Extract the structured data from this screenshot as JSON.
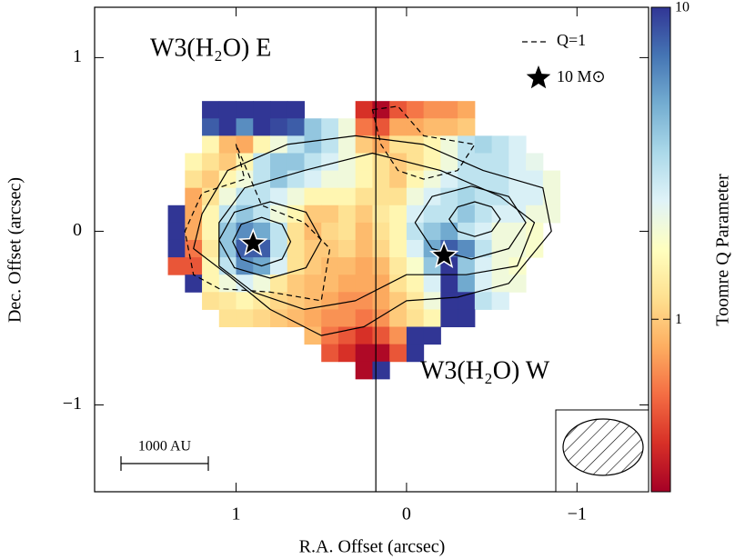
{
  "chart_data": {
    "type": "heatmap",
    "xlabel": "R.A. Offset (arcsec)",
    "ylabel": "Dec. Offset (arcsec)",
    "xlim": [
      1.83,
      -1.42
    ],
    "ylim": [
      -1.5,
      1.29
    ],
    "xticks": [
      1,
      0,
      {
        "value": -1,
        "label": "−1"
      }
    ],
    "yticks": [
      {
        "value": -1,
        "label": "−1"
      },
      0,
      1
    ],
    "x": [
      1.35,
      1.25,
      1.15,
      1.05,
      0.95,
      0.85,
      0.75,
      0.65,
      0.55,
      0.45,
      0.35,
      0.25,
      0.15,
      0.05,
      -0.05,
      -0.15,
      -0.25,
      -0.35,
      -0.45,
      -0.55,
      -0.65,
      -0.75,
      -0.85
    ],
    "y": [
      0.7,
      0.6,
      0.5,
      0.4,
      0.3,
      0.2,
      0.1,
      0,
      -0.1,
      -0.2,
      -0.3,
      -0.4,
      -0.5,
      -0.6,
      -0.7,
      -0.8
    ],
    "z": [
      [
        null,
        null,
        10,
        10,
        10,
        10,
        10,
        10,
        null,
        null,
        null,
        0.4,
        0.3,
        0.5,
        0.6,
        0.7,
        0.7,
        0.8,
        null,
        null,
        null,
        null,
        null
      ],
      [
        null,
        null,
        8,
        10,
        6,
        10,
        9,
        8,
        4,
        3,
        2,
        0.6,
        0.5,
        0.8,
        0.8,
        0.9,
        0.9,
        1.0,
        null,
        null,
        null,
        null,
        null
      ],
      [
        null,
        null,
        1.5,
        0.9,
        0.8,
        1.5,
        2,
        3,
        4,
        3,
        2,
        1,
        0.8,
        1.2,
        1.2,
        1.5,
        2,
        3,
        3.5,
        3,
        2.5,
        null,
        null
      ],
      [
        null,
        1.5,
        1.2,
        1,
        1.5,
        3,
        4,
        4,
        3,
        2.5,
        2,
        1.5,
        1.2,
        1,
        1.2,
        1.5,
        2,
        3,
        3,
        3,
        2.5,
        2.2,
        null
      ],
      [
        null,
        1.2,
        1,
        1.5,
        2,
        3,
        4,
        3,
        2.5,
        2,
        2,
        1.5,
        1.2,
        1,
        1.5,
        2,
        2.5,
        3,
        3,
        3,
        2.5,
        2.5,
        2
      ],
      [
        null,
        0.8,
        1.2,
        2,
        3,
        3,
        2.5,
        2,
        1.5,
        1.5,
        1.5,
        1.2,
        1.2,
        1.2,
        2,
        2.5,
        3,
        3.5,
        3,
        3,
        2.5,
        2.5,
        2
      ],
      [
        10,
        0.8,
        1.5,
        3,
        4,
        3,
        2,
        1.5,
        1,
        1,
        1.2,
        1,
        1.3,
        1.5,
        2.5,
        3,
        3,
        4,
        3,
        2.5,
        2.5,
        2,
        2
      ],
      [
        10,
        0.8,
        1.5,
        4,
        6,
        5,
        3,
        1.2,
        0.9,
        1.1,
        1.2,
        0.9,
        1.2,
        1.5,
        3,
        4,
        5,
        3,
        2.5,
        2,
        2,
        1.8,
        null
      ],
      [
        10,
        0.6,
        1.3,
        4,
        8,
        8,
        3,
        1.2,
        1,
        1,
        1.1,
        0.9,
        1.1,
        1.5,
        2.5,
        5,
        8,
        6,
        3,
        2,
        2,
        1.8,
        null
      ],
      [
        0.5,
        0.5,
        1.5,
        3,
        6,
        5,
        2.5,
        1.2,
        1,
        0.9,
        0.9,
        0.8,
        0.9,
        1.3,
        1.8,
        4,
        10,
        4,
        2.5,
        2,
        1.8,
        null,
        null
      ],
      [
        null,
        10,
        1.5,
        2,
        2.5,
        2,
        1.3,
        1,
        0.9,
        0.9,
        0.8,
        0.8,
        0.8,
        1.2,
        1.5,
        2.5,
        10,
        5,
        2.5,
        2,
        2,
        null,
        null
      ],
      [
        null,
        null,
        1.2,
        1.3,
        1.5,
        1.3,
        1.1,
        1,
        0.9,
        0.8,
        0.7,
        0.7,
        0.8,
        1,
        1.3,
        2,
        10,
        10,
        3,
        2.5,
        null,
        null,
        null
      ],
      [
        null,
        null,
        null,
        1.2,
        1.2,
        1.1,
        1,
        0.9,
        0.8,
        0.7,
        0.7,
        0.6,
        0.7,
        1,
        1.2,
        1.5,
        10,
        10,
        null,
        null,
        null,
        null,
        null
      ],
      [
        null,
        null,
        null,
        null,
        null,
        null,
        null,
        null,
        0.9,
        0.6,
        0.5,
        0.4,
        0.5,
        0.7,
        10,
        10,
        null,
        null,
        null,
        null,
        null,
        null,
        null
      ],
      [
        null,
        null,
        null,
        null,
        null,
        null,
        null,
        null,
        null,
        0.5,
        0.4,
        0.3,
        0.3,
        0.5,
        10,
        null,
        null,
        null,
        null,
        null,
        null,
        null,
        null
      ],
      [
        null,
        null,
        null,
        null,
        null,
        null,
        null,
        null,
        null,
        null,
        null,
        0.3,
        10,
        null,
        null,
        null,
        null,
        null,
        null,
        null,
        null,
        null,
        null
      ]
    ],
    "colorbar": {
      "label": "Toomre Q Parameter",
      "log": true,
      "lim": [
        0.28,
        10
      ],
      "ticks": [
        1,
        10
      ],
      "colors": [
        "#a50026",
        "#d73027",
        "#f46d43",
        "#fdae61",
        "#fee090",
        "#ffffbf",
        "#e0f3f8",
        "#abd9e9",
        "#74add1",
        "#4575b4",
        "#313695"
      ]
    },
    "contours": [
      {
        "x": [
          1.2,
          1.05,
          0.7,
          0.3,
          -0.1,
          -0.45,
          -0.8,
          -0.85,
          -0.6,
          -0.3,
          0.0,
          0.25,
          0.5,
          0.8,
          1.05,
          1.25
        ],
        "y": [
          0.1,
          0.35,
          0.5,
          0.55,
          0.5,
          0.35,
          0.25,
          0.0,
          -0.3,
          -0.38,
          -0.4,
          -0.55,
          -0.6,
          -0.45,
          -0.25,
          -0.1
        ]
      },
      {
        "x": [
          1.1,
          0.95,
          0.6,
          0.2,
          -0.2,
          -0.55,
          -0.75,
          -0.65,
          -0.35,
          0,
          0.3,
          0.6,
          0.9,
          1.1
        ],
        "y": [
          0.05,
          0.25,
          0.35,
          0.45,
          0.35,
          0.2,
          0.05,
          -0.2,
          -0.25,
          -0.25,
          -0.4,
          -0.45,
          -0.35,
          -0.2
        ]
      },
      {
        "x": [
          1.1,
          1.01,
          0.8,
          0.59,
          0.5,
          0.59,
          0.8,
          1.01
        ],
        "y": [
          -0.05,
          0.11,
          0.17,
          0.11,
          -0.05,
          -0.21,
          -0.27,
          -0.21
        ]
      },
      {
        "x": [
          1.02,
          0.97,
          0.85,
          0.73,
          0.68,
          0.73,
          0.85,
          0.97
        ],
        "y": [
          -0.06,
          0.04,
          0.08,
          0.04,
          -0.06,
          -0.16,
          -0.2,
          -0.16
        ]
      },
      {
        "x": [
          -0.05,
          -0.15,
          -0.38,
          -0.6,
          -0.7,
          -0.6,
          -0.38,
          -0.15
        ],
        "y": [
          0.05,
          0.2,
          0.26,
          0.2,
          0.05,
          -0.1,
          -0.16,
          -0.1
        ]
      },
      {
        "x": [
          -0.25,
          -0.3,
          -0.4,
          -0.5,
          -0.55,
          -0.5,
          -0.4,
          -0.3
        ],
        "y": [
          0.07,
          0.14,
          0.17,
          0.14,
          0.07,
          0.0,
          -0.03,
          0.0
        ]
      }
    ],
    "q1_contours": {
      "name": "Q=1",
      "paths": [
        {
          "x": [
            1.0,
            0.95,
            1.2,
            1.3,
            1.25,
            1.1,
            0.8,
            0.5,
            0.45,
            0.6,
            0.85
          ],
          "y": [
            0.5,
            0.3,
            0.22,
            0.0,
            -0.25,
            -0.33,
            -0.35,
            -0.4,
            -0.1,
            0.05,
            0.15
          ]
        },
        {
          "x": [
            0.2,
            0.05,
            -0.1,
            -0.4,
            -0.3,
            -0.1,
            0.05,
            0.15
          ],
          "y": [
            0.7,
            0.72,
            0.55,
            0.5,
            0.35,
            0.3,
            0.35,
            0.5
          ]
        }
      ]
    },
    "stars": {
      "name": "10 M⊙",
      "x": [
        0.9,
        -0.22
      ],
      "y": [
        -0.07,
        -0.14
      ]
    },
    "vline": 0.18,
    "annotations": [
      "W3(H₂O) E",
      "W3(H₂O) W"
    ],
    "scale_bar": "1000 AU"
  }
}
